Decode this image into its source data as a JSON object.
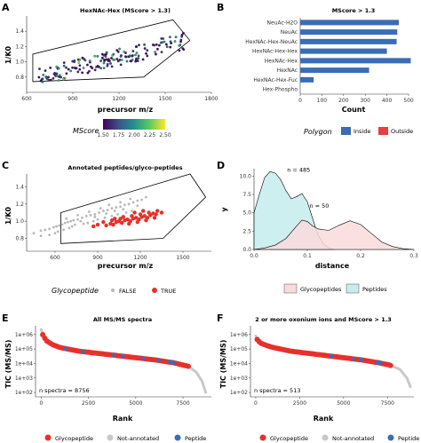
{
  "panels": {
    "A": {
      "label": "A",
      "title": "HexNAc-Hex (MScore > 1.3)",
      "xlabel": "precursor m/z",
      "ylabel": "1/K0",
      "legend_title": "MScore",
      "legend_ticks": [
        "1.50",
        "1.75",
        "2.00",
        "2.25",
        "2.50"
      ]
    },
    "B": {
      "label": "B",
      "title": "MScore > 1.3",
      "xlabel": "Count",
      "legend_title": "Polygon",
      "legend_items": [
        "Inside",
        "Outside"
      ]
    },
    "C": {
      "label": "C",
      "title": "Annotated peptides/glyco-peptides",
      "xlabel": "precursor m/z",
      "ylabel": "1/K0",
      "legend_title": "Glycopeptide",
      "legend_items": [
        "FALSE",
        "TRUE"
      ]
    },
    "D": {
      "label": "D",
      "xlabel": "distance",
      "ylabel": "y",
      "annotations": [
        "n = 485",
        "n = 50"
      ],
      "legend_items": [
        "Glycopeptides",
        "Peptides"
      ]
    },
    "E": {
      "label": "E",
      "title": "All MS/MS spectra",
      "xlabel": "Rank",
      "ylabel": "TIC (MS/MS)",
      "note": "n spectra = 8756",
      "legend_items": [
        "Glycopeptide",
        "Not-annotated",
        "Peptide"
      ]
    },
    "F": {
      "label": "F",
      "title": "2 or more oxonium ions and MScore > 1.3",
      "xlabel": "Rank",
      "ylabel": "TIC (MS/MS)",
      "note": "n spectra = 513",
      "legend_items": [
        "Glycopeptide",
        "Not-annotated",
        "Peptide"
      ]
    }
  },
  "colors": {
    "inside": "#3a6db5",
    "outside": "#e8403a",
    "glyco": "#e8302a",
    "pep": "#c8c8c8",
    "peptide_blue": "#3a6db5",
    "fill_glyco": "#fadadd",
    "fill_pep": "#c6ecec",
    "bar": "#3a6db5"
  },
  "chart_data": [
    {
      "panel": "A",
      "type": "scatter",
      "xlim": [
        600,
        1800
      ],
      "ylim": [
        0.6,
        1.6
      ],
      "x_ticks": [
        600,
        900,
        1200,
        1500,
        1800
      ],
      "y_ticks": [
        0.8,
        1.0,
        1.2,
        1.4
      ],
      "polygon": [
        [
          640,
          1.1
        ],
        [
          640,
          0.74
        ],
        [
          1360,
          0.8
        ],
        [
          1660,
          1.28
        ],
        [
          1550,
          1.55
        ]
      ],
      "color_scale": [
        "#440154",
        "#3b528b",
        "#21918c",
        "#5ec962",
        "#fde725"
      ],
      "color_range": [
        1.5,
        2.5
      ],
      "note": "points lie within the polygon along an increasing trend"
    },
    {
      "panel": "B",
      "type": "bar",
      "orientation": "horizontal",
      "xlim": [
        0,
        500
      ],
      "x_ticks": [
        0,
        100,
        200,
        300,
        400,
        500
      ],
      "categories": [
        "NeuAc-H2O",
        "NeuAc",
        "HexNAc-Hex-NeuAc",
        "HexNAc-Hex-Hex",
        "HexNAc-Hex",
        "HexNAc",
        "HexNAc-Hex-Fuc",
        "Hex-Phospho"
      ],
      "values": [
        455,
        448,
        445,
        400,
        510,
        318,
        62,
        0
      ]
    },
    {
      "panel": "C",
      "type": "scatter",
      "xlim": [
        400,
        1700
      ],
      "ylim": [
        0.65,
        1.55
      ],
      "x_ticks": [
        600,
        900,
        1200,
        1500
      ],
      "y_ticks": [
        0.8,
        1.0,
        1.2,
        1.4
      ],
      "polygon": [
        [
          640,
          1.1
        ],
        [
          640,
          0.74
        ],
        [
          1360,
          0.8
        ],
        [
          1660,
          1.28
        ],
        [
          1550,
          1.55
        ]
      ],
      "series": [
        {
          "name": "FALSE",
          "points": [
            [
              450,
              0.86
            ],
            [
              500,
              0.89
            ],
            [
              530,
              0.9
            ],
            [
              560,
              0.91
            ],
            [
              590,
              0.93
            ],
            [
              610,
              0.94
            ],
            [
              630,
              0.95
            ],
            [
              650,
              0.96
            ],
            [
              670,
              0.98
            ],
            [
              690,
              0.99
            ],
            [
              710,
              1.0
            ],
            [
              730,
              1.01
            ],
            [
              760,
              1.02
            ],
            [
              790,
              1.04
            ],
            [
              820,
              1.06
            ],
            [
              850,
              1.07
            ],
            [
              880,
              1.08
            ],
            [
              910,
              1.1
            ],
            [
              940,
              1.12
            ],
            [
              970,
              1.13
            ],
            [
              1000,
              1.15
            ],
            [
              1030,
              1.16
            ],
            [
              1060,
              1.17
            ],
            [
              1090,
              1.19
            ],
            [
              1120,
              1.2
            ],
            [
              1150,
              1.22
            ],
            [
              1180,
              1.24
            ],
            [
              1210,
              1.25
            ],
            [
              600,
              0.86
            ],
            [
              620,
              0.88
            ],
            [
              700,
              0.92
            ],
            [
              720,
              0.94
            ],
            [
              800,
              0.97
            ],
            [
              830,
              0.98
            ],
            [
              870,
              1.0
            ],
            [
              900,
              1.02
            ],
            [
              950,
              1.04
            ],
            [
              1000,
              1.06
            ],
            [
              1040,
              1.08
            ],
            [
              1100,
              1.1
            ],
            [
              1140,
              1.12
            ],
            [
              560,
              0.84
            ],
            [
              680,
              1.03
            ],
            [
              760,
              1.07
            ],
            [
              840,
              1.11
            ],
            [
              920,
              1.15
            ],
            [
              980,
              1.19
            ],
            [
              1060,
              1.22
            ],
            [
              1130,
              1.26
            ],
            [
              1240,
              1.28
            ],
            [
              500,
              0.83
            ],
            [
              660,
              0.9
            ],
            [
              740,
              0.96
            ],
            [
              780,
              1.0
            ],
            [
              880,
              1.05
            ],
            [
              960,
              1.09
            ],
            [
              1020,
              1.12
            ],
            [
              1080,
              1.14
            ],
            [
              1180,
              1.18
            ]
          ]
        },
        {
          "name": "TRUE",
          "points": [
            [
              960,
              0.95
            ],
            [
              990,
              0.97
            ],
            [
              1010,
              0.96
            ],
            [
              1030,
              0.99
            ],
            [
              1050,
              1.0
            ],
            [
              1070,
              0.98
            ],
            [
              1090,
              1.01
            ],
            [
              1110,
              1.02
            ],
            [
              1130,
              1.0
            ],
            [
              1150,
              1.03
            ],
            [
              1170,
              1.04
            ],
            [
              1190,
              1.02
            ],
            [
              1210,
              1.05
            ],
            [
              1230,
              1.06
            ],
            [
              1250,
              1.04
            ],
            [
              1270,
              1.07
            ],
            [
              1290,
              1.09
            ],
            [
              1310,
              1.08
            ],
            [
              1020,
              1.03
            ],
            [
              1080,
              1.05
            ],
            [
              1140,
              1.06
            ],
            [
              1200,
              1.08
            ],
            [
              1260,
              1.1
            ],
            [
              1320,
              1.12
            ],
            [
              940,
              0.99
            ],
            [
              1000,
              1.01
            ],
            [
              1060,
              1.03
            ],
            [
              1120,
              0.97
            ],
            [
              1180,
              0.99
            ],
            [
              1240,
              1.01
            ],
            [
              1300,
              1.04
            ],
            [
              1350,
              1.1
            ],
            [
              870,
              0.94
            ],
            [
              900,
              0.96
            ],
            [
              1160,
              1.1
            ],
            [
              1220,
              1.12
            ]
          ]
        }
      ]
    },
    {
      "panel": "D",
      "type": "area",
      "xlim": [
        0,
        0.3
      ],
      "ylim": [
        0,
        11
      ],
      "x_ticks": [
        0.0,
        0.1,
        0.2,
        0.3
      ],
      "y_ticks": [
        0.0,
        2.5,
        5.0,
        7.5,
        10.0
      ],
      "series": [
        {
          "name": "Peptides",
          "x": [
            0,
            0.01,
            0.02,
            0.03,
            0.04,
            0.05,
            0.06,
            0.07,
            0.08,
            0.09,
            0.1,
            0.11,
            0.12,
            0.13,
            0.14,
            0.15
          ],
          "y": [
            5,
            7.5,
            9.8,
            10.6,
            10.4,
            9.5,
            8.0,
            6.9,
            7.2,
            7.6,
            6.5,
            4.2,
            2.0,
            0.8,
            0.2,
            0
          ]
        },
        {
          "name": "Glycopeptides",
          "x": [
            0,
            0.02,
            0.04,
            0.06,
            0.08,
            0.09,
            0.1,
            0.11,
            0.12,
            0.14,
            0.16,
            0.18,
            0.2,
            0.22,
            0.24,
            0.26,
            0.28,
            0.3
          ],
          "y": [
            0,
            0.2,
            0.6,
            1.5,
            3.2,
            4.0,
            3.8,
            3.2,
            2.8,
            2.6,
            3.3,
            3.9,
            3.4,
            2.2,
            1.0,
            0.4,
            0.1,
            0
          ]
        }
      ]
    },
    {
      "panel": "E",
      "type": "scatter",
      "xlim": [
        -300,
        9000
      ],
      "x_ticks": [
        0,
        2500,
        5000,
        7500
      ],
      "y_log": true,
      "y_ticks": [
        "1e+02",
        "1e+03",
        "1e+04",
        "1e+05",
        "1e+06"
      ],
      "ylim_log10": [
        1.7,
        6.6
      ],
      "profile": [
        [
          0,
          6.35
        ],
        [
          100,
          5.9
        ],
        [
          300,
          5.55
        ],
        [
          600,
          5.3
        ],
        [
          1000,
          5.1
        ],
        [
          2000,
          4.85
        ],
        [
          3000,
          4.7
        ],
        [
          4000,
          4.55
        ],
        [
          5000,
          4.4
        ],
        [
          6000,
          4.25
        ],
        [
          7000,
          4.05
        ],
        [
          7800,
          3.8
        ],
        [
          8200,
          3.4
        ],
        [
          8500,
          2.8
        ],
        [
          8700,
          2.0
        ]
      ],
      "blue_ranks": [
        1300,
        2200,
        3800,
        4300,
        5400,
        6200,
        6800,
        7000
      ]
    },
    {
      "panel": "F",
      "type": "scatter",
      "xlim": [
        -300,
        9000
      ],
      "x_ticks": [
        0,
        2500,
        5000,
        7500
      ],
      "y_log": true,
      "y_ticks": [
        "1e+02",
        "1e+03",
        "1e+04",
        "1e+05",
        "1e+06"
      ],
      "ylim_log10": [
        1.7,
        6.6
      ],
      "profile": [
        [
          0,
          5.9
        ],
        [
          100,
          5.6
        ],
        [
          300,
          5.4
        ],
        [
          600,
          5.25
        ],
        [
          1000,
          5.1
        ],
        [
          2000,
          4.85
        ],
        [
          3000,
          4.7
        ],
        [
          4000,
          4.55
        ],
        [
          5000,
          4.4
        ],
        [
          6000,
          4.25
        ],
        [
          7000,
          4.05
        ],
        [
          7600,
          3.9
        ],
        [
          8200,
          3.6
        ],
        [
          8600,
          3.0
        ],
        [
          8800,
          2.4
        ]
      ],
      "blue_ranks": [
        4300,
        5600,
        6000,
        6900,
        7100
      ]
    }
  ]
}
